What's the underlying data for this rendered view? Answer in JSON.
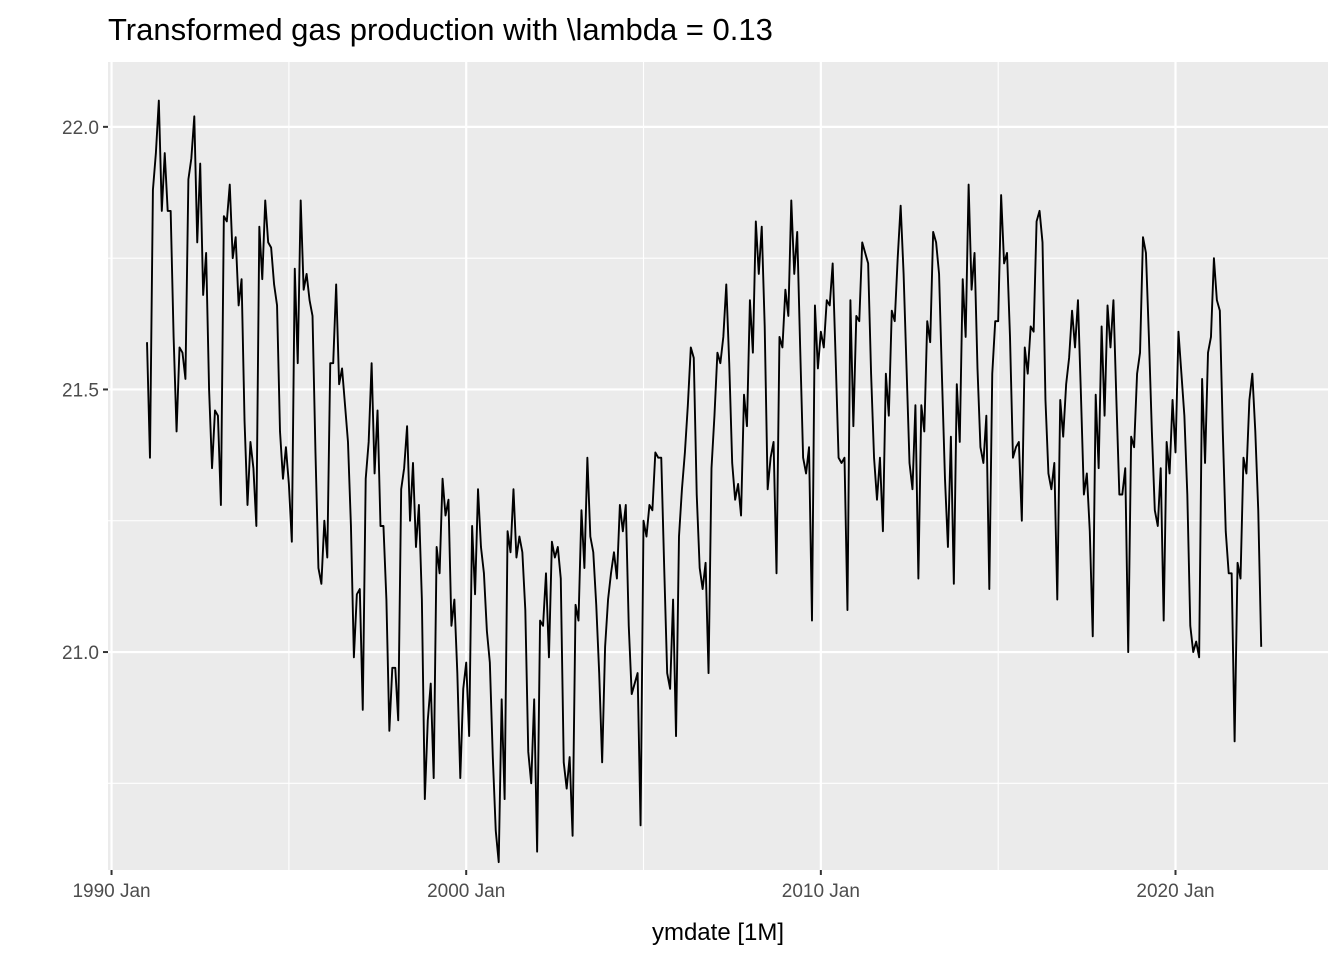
{
  "chart_data": {
    "type": "line",
    "title": "Transformed gas production with \\lambda = 0.13",
    "xlabel": "ymdate [1M]",
    "ylabel": "",
    "x_ticks": [
      {
        "label": "1990 Jan",
        "value": 1990.0
      },
      {
        "label": "2000 Jan",
        "value": 2000.0
      },
      {
        "label": "2010 Jan",
        "value": 2010.0
      },
      {
        "label": "2020 Jan",
        "value": 2020.0
      }
    ],
    "y_ticks": [
      {
        "label": "21.0",
        "value": 21.0
      },
      {
        "label": "21.5",
        "value": 21.5
      },
      {
        "label": "22.0",
        "value": 22.0
      }
    ],
    "xlim": [
      1989.9,
      2024.3
    ],
    "ylim": [
      20.585,
      22.1235
    ],
    "grid": true,
    "legend": "none",
    "colors": {
      "panel": "#ebebeb",
      "grid": "#ffffff",
      "line": "#000000"
    },
    "x_start": "1991 Jan",
    "x_step": "1 month",
    "series": [
      {
        "values": [
          21.59,
          21.37,
          21.88,
          21.95,
          22.05,
          21.84,
          21.95,
          21.84,
          21.84,
          21.6,
          21.42,
          21.58,
          21.57,
          21.52,
          21.9,
          21.94,
          22.02,
          21.78,
          21.93,
          21.68,
          21.76,
          21.5,
          21.35,
          21.46,
          21.45,
          21.28,
          21.83,
          21.82,
          21.89,
          21.75,
          21.79,
          21.66,
          21.71,
          21.44,
          21.28,
          21.4,
          21.35,
          21.24,
          21.81,
          21.71,
          21.86,
          21.78,
          21.77,
          21.7,
          21.66,
          21.42,
          21.33,
          21.39,
          21.32,
          21.21,
          21.73,
          21.55,
          21.86,
          21.69,
          21.72,
          21.67,
          21.64,
          21.38,
          21.16,
          21.13,
          21.25,
          21.18,
          21.55,
          21.55,
          21.7,
          21.51,
          21.54,
          21.47,
          21.4,
          21.24,
          20.99,
          21.11,
          21.12,
          20.89,
          21.33,
          21.4,
          21.55,
          21.34,
          21.46,
          21.24,
          21.24,
          21.1,
          20.85,
          20.97,
          20.97,
          20.87,
          21.31,
          21.35,
          21.43,
          21.25,
          21.36,
          21.2,
          21.28,
          21.1,
          20.72,
          20.87,
          20.94,
          20.76,
          21.2,
          21.15,
          21.33,
          21.26,
          21.29,
          21.05,
          21.1,
          20.96,
          20.76,
          20.93,
          20.98,
          20.84,
          21.24,
          21.11,
          21.31,
          21.2,
          21.15,
          21.04,
          20.98,
          20.8,
          20.66,
          20.6,
          20.91,
          20.72,
          21.23,
          21.19,
          21.31,
          21.18,
          21.22,
          21.19,
          21.08,
          20.81,
          20.75,
          20.91,
          20.62,
          21.06,
          21.05,
          21.15,
          20.99,
          21.21,
          21.18,
          21.2,
          21.14,
          20.79,
          20.74,
          20.8,
          20.65,
          21.09,
          21.06,
          21.27,
          21.16,
          21.37,
          21.22,
          21.19,
          21.09,
          20.96,
          20.79,
          21.01,
          21.1,
          21.15,
          21.19,
          21.14,
          21.28,
          21.23,
          21.28,
          21.05,
          20.92,
          20.94,
          20.96,
          20.67,
          21.25,
          21.22,
          21.28,
          21.27,
          21.38,
          21.37,
          21.37,
          21.16,
          20.96,
          20.93,
          21.1,
          20.84,
          21.22,
          21.31,
          21.38,
          21.47,
          21.58,
          21.56,
          21.3,
          21.16,
          21.12,
          21.17,
          20.96,
          21.35,
          21.45,
          21.57,
          21.55,
          21.6,
          21.7,
          21.55,
          21.36,
          21.29,
          21.32,
          21.26,
          21.49,
          21.43,
          21.67,
          21.57,
          21.82,
          21.72,
          21.81,
          21.62,
          21.31,
          21.37,
          21.4,
          21.15,
          21.6,
          21.58,
          21.69,
          21.64,
          21.86,
          21.72,
          21.8,
          21.58,
          21.37,
          21.34,
          21.39,
          21.06,
          21.66,
          21.54,
          21.61,
          21.58,
          21.67,
          21.66,
          21.74,
          21.56,
          21.37,
          21.36,
          21.37,
          21.08,
          21.67,
          21.43,
          21.64,
          21.63,
          21.78,
          21.76,
          21.74,
          21.53,
          21.37,
          21.29,
          21.37,
          21.23,
          21.53,
          21.45,
          21.65,
          21.63,
          21.75,
          21.85,
          21.72,
          21.54,
          21.36,
          21.31,
          21.47,
          21.14,
          21.47,
          21.42,
          21.63,
          21.59,
          21.8,
          21.78,
          21.72,
          21.52,
          21.33,
          21.2,
          21.41,
          21.13,
          21.51,
          21.4,
          21.71,
          21.6,
          21.89,
          21.69,
          21.76,
          21.54,
          21.39,
          21.36,
          21.45,
          21.12,
          21.53,
          21.63,
          21.63,
          21.87,
          21.74,
          21.76,
          21.6,
          21.37,
          21.39,
          21.4,
          21.25,
          21.58,
          21.53,
          21.62,
          21.61,
          21.82,
          21.84,
          21.78,
          21.48,
          21.34,
          21.31,
          21.36,
          21.1,
          21.48,
          21.41,
          21.51,
          21.56,
          21.65,
          21.58,
          21.67,
          21.49,
          21.3,
          21.34,
          21.23,
          21.03,
          21.49,
          21.35,
          21.62,
          21.45,
          21.66,
          21.58,
          21.67,
          21.48,
          21.3,
          21.3,
          21.35,
          21.0,
          21.41,
          21.39,
          21.53,
          21.57,
          21.79,
          21.76,
          21.6,
          21.42,
          21.27,
          21.24,
          21.35,
          21.06,
          21.4,
          21.34,
          21.48,
          21.38,
          21.61,
          21.53,
          21.45,
          21.3,
          21.05,
          21.0,
          21.02,
          20.99,
          21.52,
          21.36,
          21.57,
          21.6,
          21.75,
          21.67,
          21.65,
          21.42,
          21.23,
          21.15,
          21.15,
          20.83,
          21.17,
          21.14,
          21.37,
          21.34,
          21.48,
          21.53,
          21.42,
          21.27,
          21.01
        ]
      }
    ]
  }
}
